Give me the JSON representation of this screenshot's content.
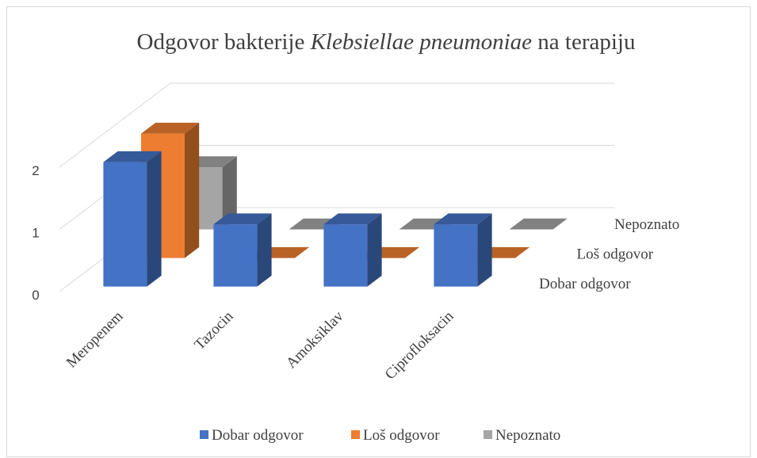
{
  "chart_data": {
    "type": "bar3d",
    "title": [
      "Odgovor bakterije",
      "Klebsiellae pneumoniae",
      "na terapiju"
    ],
    "categories": [
      "Meropenem",
      "Tazocin",
      "Amoksiklav",
      "Ciprofloksacin"
    ],
    "series": [
      {
        "name": "Dobar odgovor",
        "color": "#4472c4",
        "values": [
          2,
          1,
          1,
          1
        ]
      },
      {
        "name": "Loš odgovor",
        "color": "#ed7d31",
        "values": [
          2,
          0,
          0,
          0
        ]
      },
      {
        "name": "Nepoznato",
        "color": "#a5a5a5",
        "values": [
          1,
          0,
          0,
          0
        ]
      }
    ],
    "ylim": [
      0,
      2
    ],
    "yticks": [
      0,
      1,
      2
    ],
    "grid": true,
    "legend": "bottom"
  }
}
